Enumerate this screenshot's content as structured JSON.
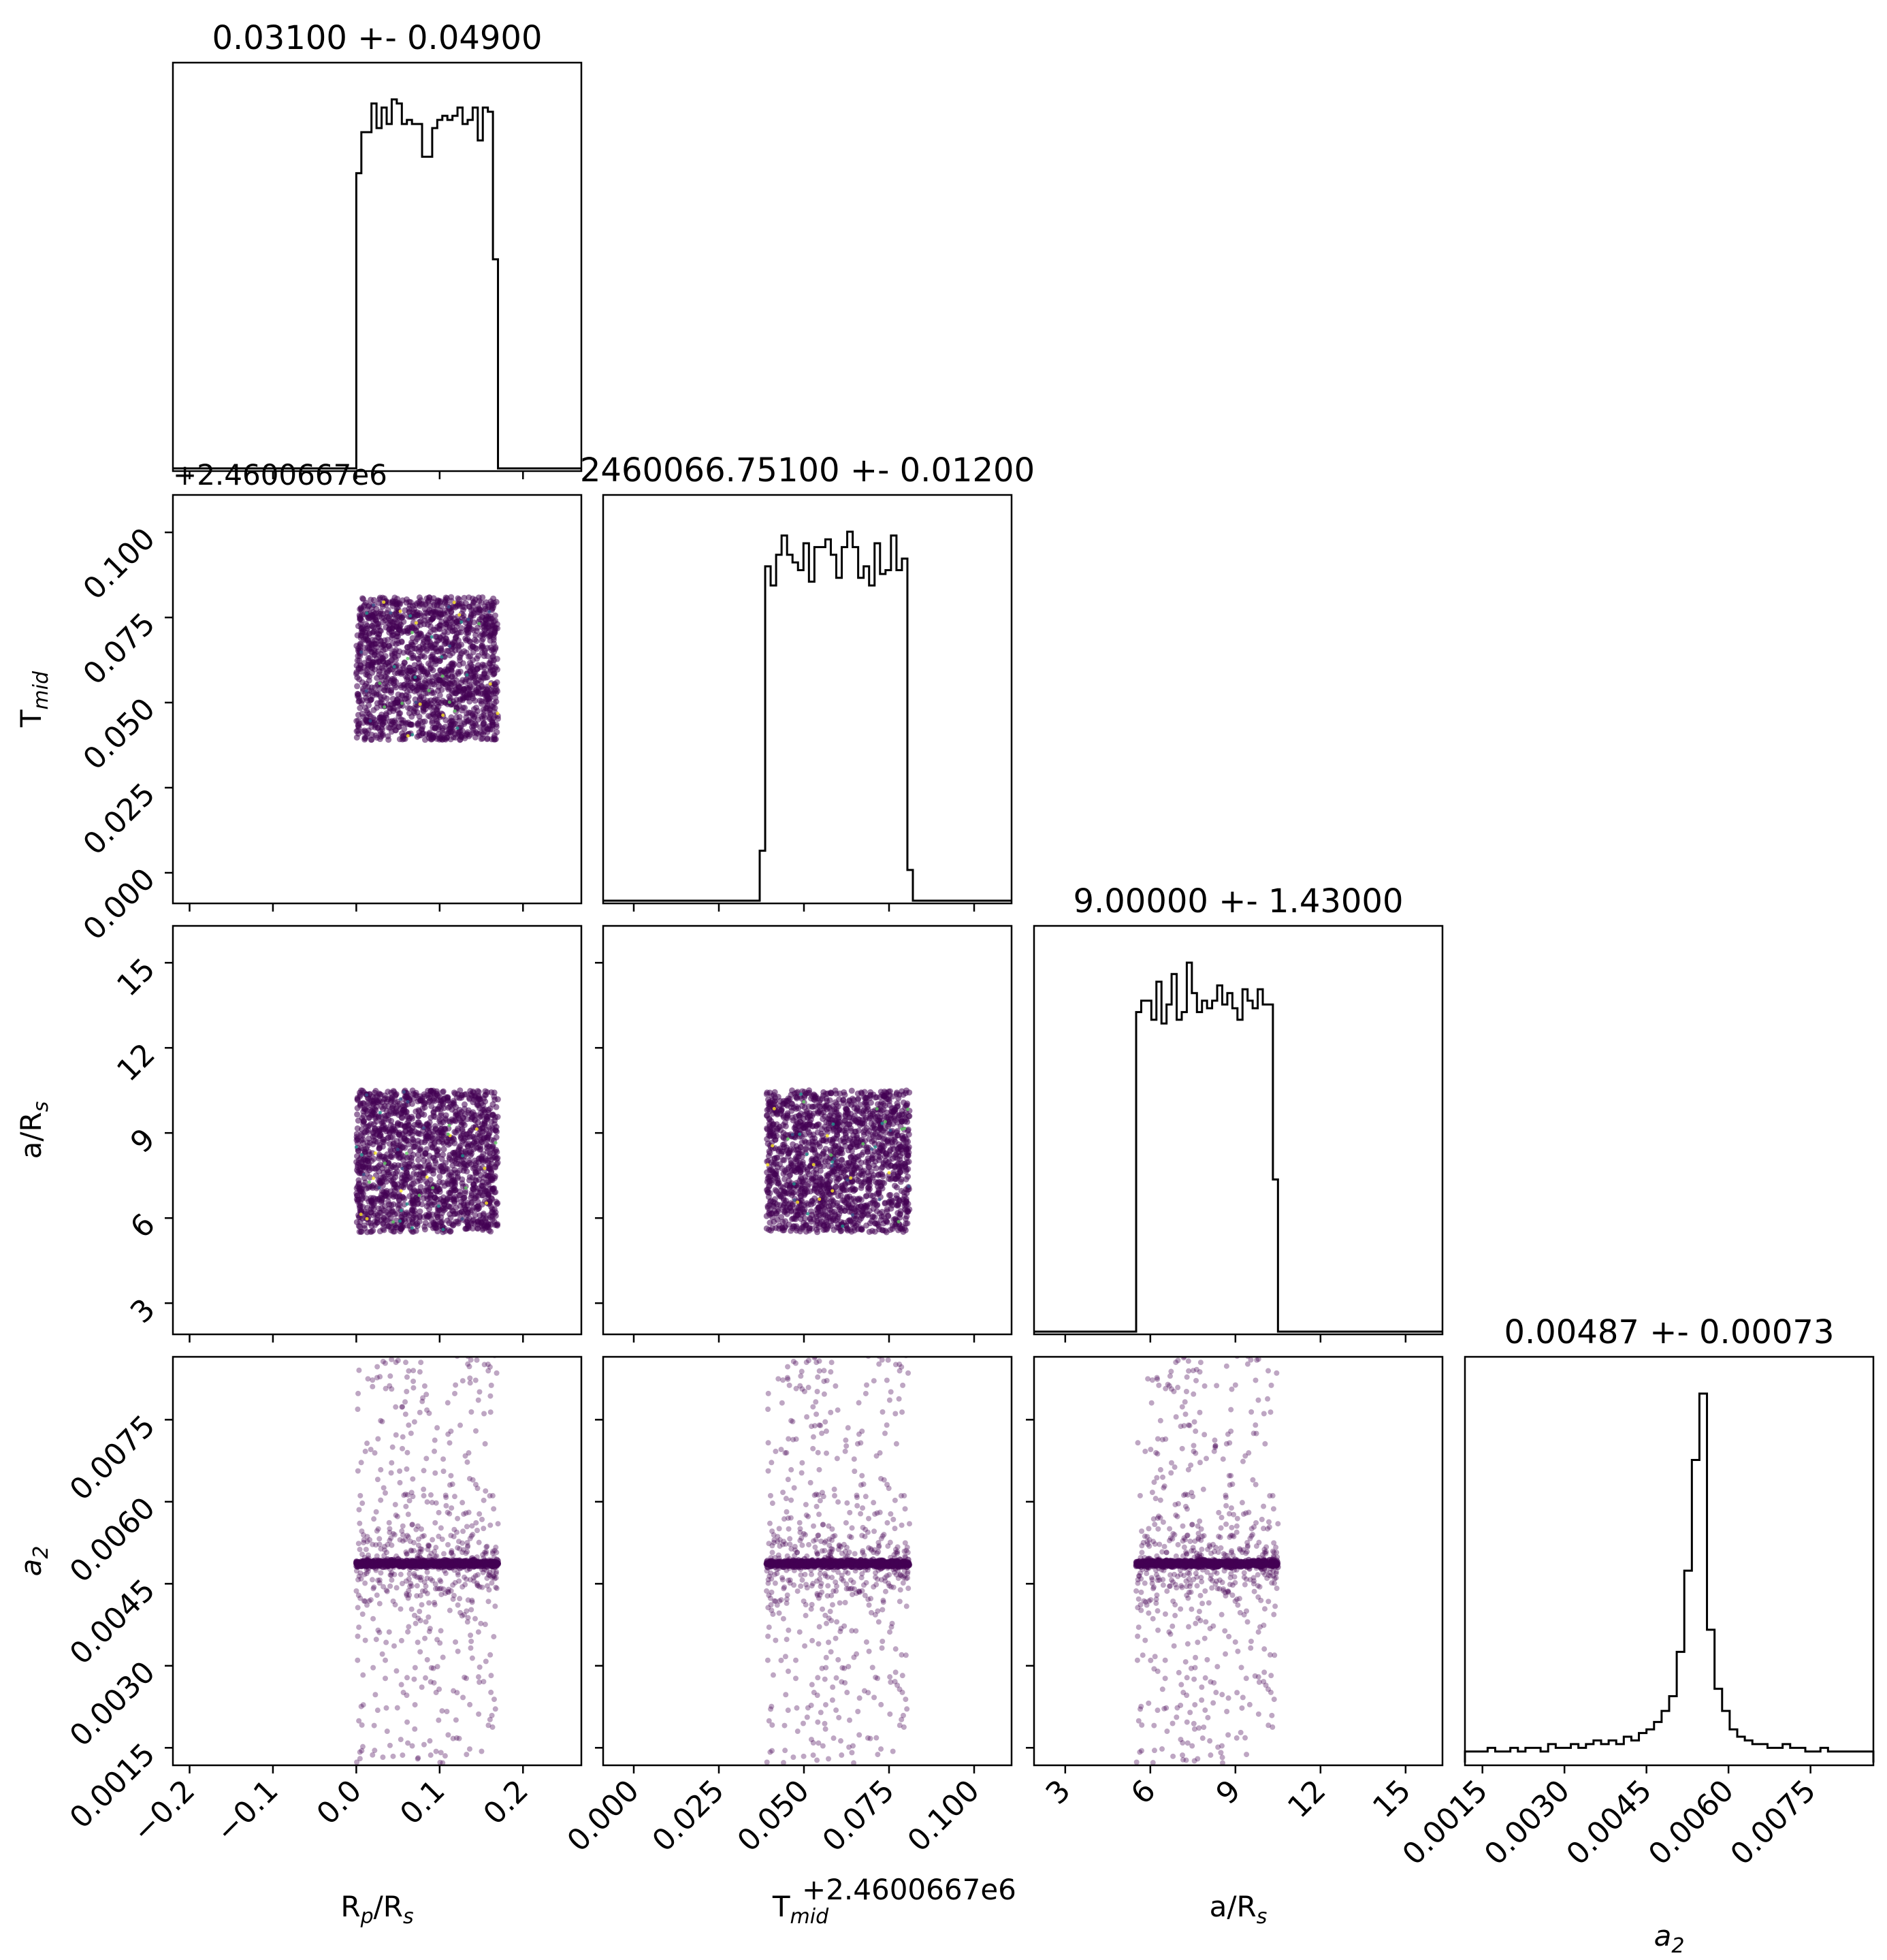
{
  "figure": {
    "background": "#ffffff"
  },
  "chart_data": {
    "type": "corner",
    "parameters": [
      {
        "key": "rp",
        "label_main": "R",
        "label_sub": "p",
        "label_rest": "/R",
        "label_sub2": "s",
        "range": [
          -0.22,
          0.27
        ],
        "ticks": [
          -0.2,
          -0.1,
          0.0,
          0.1,
          0.2
        ],
        "tick_labels": [
          "−0.2",
          "−0.1",
          "0.0",
          "0.1",
          "0.2"
        ],
        "sample_range": [
          0.0,
          0.17
        ],
        "title": "0.03100 +- 0.04900"
      },
      {
        "key": "tmid",
        "label_main": "T",
        "label_sub": "mid",
        "label_rest": "",
        "label_sub2": "",
        "offset_label": "+2.4600667e6",
        "range": [
          -0.009,
          0.111
        ],
        "ticks": [
          0.0,
          0.025,
          0.05,
          0.075,
          0.1
        ],
        "tick_labels": [
          "0.000",
          "0.025",
          "0.050",
          "0.075",
          "0.100"
        ],
        "sample_range": [
          0.039,
          0.081
        ],
        "title": "2460066.75100 +- 0.01200"
      },
      {
        "key": "ars",
        "label_main": "a/R",
        "label_sub": "s",
        "label_rest": "",
        "label_sub2": "",
        "range": [
          1.9,
          16.3
        ],
        "ticks": [
          3,
          6,
          9,
          12,
          15
        ],
        "tick_labels": [
          "3",
          "6",
          "9",
          "12",
          "15"
        ],
        "sample_range": [
          5.5,
          10.5
        ],
        "title": "9.00000 +- 1.43000"
      },
      {
        "key": "a2",
        "label_main": "a",
        "label_sub": "2",
        "label_rest": "",
        "label_sub2": "",
        "italic": true,
        "range": [
          0.00118,
          0.00865
        ],
        "ticks": [
          0.0015,
          0.003,
          0.0045,
          0.006,
          0.0075
        ],
        "tick_labels": [
          "0.0015",
          "0.0030",
          "0.0045",
          "0.0060",
          "0.0075"
        ],
        "sample_center": 0.00487,
        "title": "0.00487 +- 0.00073"
      }
    ],
    "histograms": {
      "rp": {
        "edges_start": 0.0,
        "edges_end": 0.17,
        "counts": [
          0.72,
          0.82,
          0.82,
          0.89,
          0.83,
          0.88,
          0.84,
          0.9,
          0.89,
          0.84,
          0.85,
          0.84,
          0.84,
          0.76,
          0.76,
          0.83,
          0.85,
          0.86,
          0.85,
          0.86,
          0.88,
          0.84,
          0.85,
          0.88,
          0.8,
          0.88,
          0.87,
          0.51
        ]
      },
      "tmid": {
        "edges_start": 0.037,
        "edges_end": 0.082,
        "counts": [
          0.13,
          0.87,
          0.82,
          0.9,
          0.95,
          0.9,
          0.88,
          0.86,
          0.93,
          0.83,
          0.92,
          0.92,
          0.94,
          0.9,
          0.84,
          0.92,
          0.96,
          0.92,
          0.84,
          0.87,
          0.82,
          0.93,
          0.85,
          0.86,
          0.95,
          0.86,
          0.89,
          0.08
        ]
      },
      "ars": {
        "edges_start": 5.5,
        "edges_end": 10.5,
        "counts": [
          0.84,
          0.87,
          0.87,
          0.82,
          0.92,
          0.81,
          0.86,
          0.94,
          0.82,
          0.84,
          0.97,
          0.89,
          0.84,
          0.87,
          0.85,
          0.87,
          0.91,
          0.86,
          0.89,
          0.85,
          0.82,
          0.9,
          0.87,
          0.85,
          0.9,
          0.86,
          0.86,
          0.4
        ]
      },
      "a2": {
        "edges_start": 0.00118,
        "edges_end": 0.00865,
        "counts": [
          0.03,
          0.03,
          0.03,
          0.04,
          0.03,
          0.03,
          0.04,
          0.03,
          0.04,
          0.04,
          0.03,
          0.05,
          0.04,
          0.04,
          0.05,
          0.04,
          0.05,
          0.06,
          0.05,
          0.06,
          0.05,
          0.07,
          0.06,
          0.08,
          0.09,
          0.11,
          0.14,
          0.18,
          0.3,
          0.52,
          0.82,
          1.0,
          0.36,
          0.2,
          0.14,
          0.09,
          0.07,
          0.06,
          0.05,
          0.05,
          0.04,
          0.04,
          0.05,
          0.04,
          0.04,
          0.03,
          0.03,
          0.04,
          0.03,
          0.03,
          0.03,
          0.03,
          0.03,
          0.03
        ]
      }
    },
    "scatter_color": "#440154",
    "highlight_colors": [
      "#21918c",
      "#fde725",
      "#3b528b",
      "#5ec962"
    ],
    "histogram_color": "#000000"
  }
}
